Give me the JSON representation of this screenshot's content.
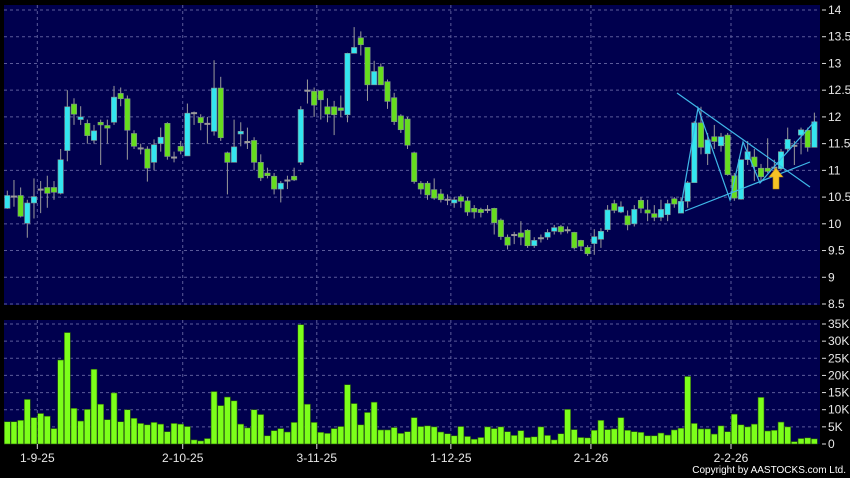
{
  "copyright": "Copyright by AASTOCKS.com Ltd.",
  "colors": {
    "background": "#000000",
    "panel": "#00004e",
    "grid": "#5b5b9a",
    "up_candle": "#33e6f0",
    "down_candle": "#66dd1e",
    "wick": "#9a9a9a",
    "volume_bar": "#7cff1a",
    "trendline": "#3fb8e8",
    "arrow": "#f7c325"
  },
  "chart_data": [
    {
      "type": "candlestick",
      "title": "",
      "y_ticks": [
        "14",
        "13.5",
        "13",
        "12.5",
        "12",
        "11.5",
        "11",
        "10.5",
        "10",
        "9.5",
        "9",
        "8.5"
      ],
      "ylim": [
        8.5,
        14
      ],
      "grid": true,
      "x_ticks": [
        {
          "label": "1-9-25",
          "at_index": 4.5
        },
        {
          "label": "2-10-25",
          "at_index": 26.3
        },
        {
          "label": "3-11-25",
          "at_index": 46.4
        },
        {
          "label": "1-12-25",
          "at_index": 66.5
        },
        {
          "label": "2-1-26",
          "at_index": 87.5
        },
        {
          "label": "2-2-26",
          "at_index": 108.5
        }
      ],
      "ohlc_fields": [
        "open",
        "high",
        "low",
        "close"
      ],
      "candles": [
        [
          10.29,
          10.62,
          10.28,
          10.53
        ],
        [
          10.51,
          10.82,
          10.32,
          10.51
        ],
        [
          10.53,
          10.68,
          10.12,
          10.14
        ],
        [
          10.01,
          10.45,
          9.74,
          10.39
        ],
        [
          10.39,
          10.85,
          10.1,
          10.51
        ],
        [
          10.64,
          10.8,
          10.2,
          10.64
        ],
        [
          10.68,
          10.9,
          10.3,
          10.57
        ],
        [
          10.68,
          10.8,
          10.45,
          10.59
        ],
        [
          10.57,
          11.4,
          10.55,
          11.2
        ],
        [
          11.37,
          12.5,
          11.17,
          12.19
        ],
        [
          12.24,
          12.35,
          11.85,
          12.05
        ],
        [
          11.95,
          12.2,
          11.85,
          12.0
        ],
        [
          11.88,
          11.95,
          11.5,
          11.65
        ],
        [
          11.56,
          11.85,
          11.5,
          11.74
        ],
        [
          11.9,
          11.95,
          11.1,
          11.85
        ],
        [
          11.84,
          11.95,
          11.5,
          11.79
        ],
        [
          11.9,
          12.58,
          11.85,
          12.37
        ],
        [
          12.44,
          12.55,
          12.2,
          12.34
        ],
        [
          12.34,
          12.4,
          11.2,
          11.75
        ],
        [
          11.69,
          11.75,
          11.4,
          11.45
        ],
        [
          11.41,
          11.5,
          11.3,
          11.41
        ],
        [
          11.4,
          11.45,
          10.79,
          11.04
        ],
        [
          11.15,
          11.58,
          11.0,
          11.48
        ],
        [
          11.5,
          11.8,
          11.35,
          11.62
        ],
        [
          11.88,
          11.9,
          11.2,
          11.26
        ],
        [
          11.24,
          11.35,
          11.15,
          11.24
        ],
        [
          11.45,
          11.55,
          11.3,
          11.36
        ],
        [
          11.27,
          12.25,
          11.27,
          12.07
        ],
        [
          12.07,
          12.1,
          11.85,
          12.07
        ],
        [
          11.99,
          12.05,
          11.75,
          11.89
        ],
        [
          11.87,
          12.0,
          11.5,
          11.87
        ],
        [
          11.73,
          13.06,
          11.65,
          12.54
        ],
        [
          12.54,
          12.75,
          11.55,
          11.61
        ],
        [
          11.33,
          11.35,
          10.55,
          11.15
        ],
        [
          11.15,
          11.95,
          11.15,
          11.44
        ],
        [
          11.68,
          11.9,
          11.45,
          11.73
        ],
        [
          11.53,
          11.8,
          11.4,
          11.53
        ],
        [
          11.56,
          11.62,
          11.0,
          11.15
        ],
        [
          11.15,
          11.3,
          10.8,
          10.86
        ],
        [
          10.95,
          11.05,
          10.85,
          10.9
        ],
        [
          10.89,
          10.95,
          10.55,
          10.65
        ],
        [
          10.65,
          10.8,
          10.4,
          10.76
        ],
        [
          10.81,
          10.9,
          10.65,
          10.81
        ],
        [
          10.89,
          11.05,
          10.8,
          10.82
        ],
        [
          11.15,
          12.2,
          11.1,
          12.14
        ],
        [
          12.49,
          12.7,
          12.25,
          12.49
        ],
        [
          12.48,
          12.55,
          12.0,
          12.22
        ],
        [
          12.49,
          12.5,
          11.95,
          12.32
        ],
        [
          12.19,
          12.35,
          11.9,
          12.05
        ],
        [
          12.19,
          12.3,
          11.66,
          12.04
        ],
        [
          12.17,
          12.4,
          12.0,
          12.12
        ],
        [
          12.04,
          13.2,
          11.9,
          13.19
        ],
        [
          13.19,
          13.68,
          13.19,
          13.3
        ],
        [
          13.48,
          13.6,
          13.15,
          13.35
        ],
        [
          13.3,
          13.3,
          12.3,
          12.6
        ],
        [
          12.6,
          13.05,
          12.6,
          12.85
        ],
        [
          12.94,
          13.0,
          12.6,
          12.6
        ],
        [
          12.66,
          12.7,
          12.15,
          12.29
        ],
        [
          12.36,
          12.45,
          11.85,
          11.91
        ],
        [
          12.02,
          12.05,
          11.7,
          11.76
        ],
        [
          11.96,
          12.0,
          11.4,
          11.47
        ],
        [
          11.33,
          11.35,
          10.75,
          10.79
        ],
        [
          10.76,
          10.8,
          10.55,
          10.65
        ],
        [
          10.76,
          10.8,
          10.45,
          10.54
        ],
        [
          10.64,
          10.85,
          10.45,
          10.48
        ],
        [
          10.56,
          10.65,
          10.4,
          10.45
        ],
        [
          10.45,
          10.55,
          10.35,
          10.45
        ],
        [
          10.39,
          10.5,
          10.3,
          10.45
        ],
        [
          10.51,
          10.55,
          10.3,
          10.42
        ],
        [
          10.43,
          10.5,
          10.15,
          10.22
        ],
        [
          10.29,
          10.35,
          10.1,
          10.22
        ],
        [
          10.27,
          10.3,
          10.12,
          10.21
        ],
        [
          10.26,
          10.35,
          10.2,
          10.26
        ],
        [
          10.29,
          10.3,
          9.8,
          10.02
        ],
        [
          10.07,
          10.1,
          9.7,
          9.76
        ],
        [
          9.75,
          9.8,
          9.52,
          9.6
        ],
        [
          9.79,
          9.85,
          9.62,
          9.79
        ],
        [
          9.83,
          10.05,
          9.6,
          9.75
        ],
        [
          9.88,
          9.9,
          9.55,
          9.59
        ],
        [
          9.59,
          9.75,
          9.55,
          9.69
        ],
        [
          9.73,
          9.8,
          9.65,
          9.73
        ],
        [
          9.75,
          9.9,
          9.7,
          9.84
        ],
        [
          9.86,
          9.98,
          9.8,
          9.93
        ],
        [
          9.95,
          9.98,
          9.8,
          9.85
        ],
        [
          9.88,
          9.95,
          9.82,
          9.88
        ],
        [
          9.84,
          9.85,
          9.52,
          9.55
        ],
        [
          9.69,
          9.7,
          9.5,
          9.58
        ],
        [
          9.56,
          9.6,
          9.4,
          9.44
        ],
        [
          9.63,
          9.9,
          9.42,
          9.76
        ],
        [
          9.71,
          9.92,
          9.55,
          9.86
        ],
        [
          9.89,
          10.35,
          9.85,
          10.26
        ],
        [
          10.38,
          10.45,
          10.2,
          10.25
        ],
        [
          10.22,
          10.42,
          10.2,
          10.32
        ],
        [
          10.15,
          10.25,
          9.88,
          9.98
        ],
        [
          10.0,
          10.35,
          9.95,
          10.27
        ],
        [
          10.44,
          10.5,
          10.2,
          10.29
        ],
        [
          10.26,
          10.45,
          10.05,
          10.2
        ],
        [
          10.19,
          10.35,
          10.05,
          10.12
        ],
        [
          10.12,
          10.45,
          10.05,
          10.27
        ],
        [
          10.17,
          10.45,
          10.05,
          10.38
        ],
        [
          10.47,
          10.5,
          10.3,
          10.37
        ],
        [
          10.2,
          10.5,
          10.2,
          10.42
        ],
        [
          10.42,
          10.8,
          10.3,
          10.77
        ],
        [
          10.77,
          11.92,
          10.77,
          11.89
        ],
        [
          11.89,
          12.19,
          11.3,
          11.43
        ],
        [
          11.31,
          11.7,
          11.1,
          11.57
        ],
        [
          11.63,
          11.85,
          11.4,
          11.54
        ],
        [
          11.46,
          11.7,
          11.35,
          11.63
        ],
        [
          11.66,
          11.7,
          10.9,
          10.92
        ],
        [
          10.9,
          10.95,
          10.43,
          10.48
        ],
        [
          10.46,
          11.2,
          10.45,
          11.2
        ],
        [
          11.2,
          11.55,
          11.1,
          11.35
        ],
        [
          11.25,
          11.4,
          10.8,
          11.07
        ],
        [
          11.04,
          11.12,
          10.8,
          10.88
        ],
        [
          11.04,
          11.6,
          10.95,
          10.98
        ],
        [
          11.05,
          11.2,
          10.95,
          11.05
        ],
        [
          11.03,
          11.4,
          11.0,
          11.35
        ],
        [
          11.4,
          11.8,
          11.35,
          11.58
        ],
        [
          11.46,
          11.55,
          11.1,
          11.46
        ],
        [
          11.66,
          11.8,
          11.3,
          11.76
        ],
        [
          11.75,
          11.8,
          11.35,
          11.43
        ],
        [
          11.43,
          12.08,
          11.43,
          11.91
        ]
      ],
      "annotations": {
        "trendlines": "symmetrical triangle (descending upper line, ascending lower line) with zigzag connecting swing highs/lows",
        "arrow": "up arrow at breakout"
      }
    },
    {
      "type": "bar",
      "title": "",
      "y_ticks": [
        "35K",
        "30K",
        "25K",
        "20K",
        "15K",
        "10K",
        "5K",
        "0"
      ],
      "ylim": [
        0,
        35000
      ],
      "grid": true,
      "values": [
        6500,
        6500,
        6900,
        13000,
        7700,
        8900,
        8100,
        4500,
        24500,
        32500,
        10400,
        6700,
        10100,
        21800,
        11600,
        7100,
        14900,
        6500,
        10000,
        7500,
        6000,
        5600,
        6300,
        5800,
        3600,
        6000,
        5800,
        5100,
        1200,
        900,
        1600,
        15300,
        11200,
        13700,
        12600,
        5800,
        4700,
        10000,
        8600,
        2400,
        3900,
        4500,
        3500,
        6300,
        34800,
        11600,
        6300,
        3400,
        3100,
        4500,
        5100,
        17300,
        11800,
        5600,
        9200,
        12200,
        4100,
        4100,
        4800,
        3100,
        3600,
        7700,
        5100,
        5300,
        5000,
        3500,
        3000,
        2400,
        5100,
        2200,
        1400,
        1900,
        5000,
        4500,
        5000,
        3600,
        2500,
        3900,
        1900,
        2100,
        5000,
        2500,
        1200,
        3000,
        10100,
        4200,
        1900,
        1800,
        4000,
        6900,
        4200,
        4400,
        7700,
        4000,
        3600,
        3400,
        2400,
        2400,
        3200,
        2600,
        4100,
        4600,
        19700,
        6000,
        4400,
        4400,
        2900,
        5300,
        3600,
        8700,
        5600,
        5000,
        5800,
        13600,
        3800,
        4000,
        6400,
        5000,
        700,
        1600,
        1800,
        1500
      ]
    }
  ]
}
